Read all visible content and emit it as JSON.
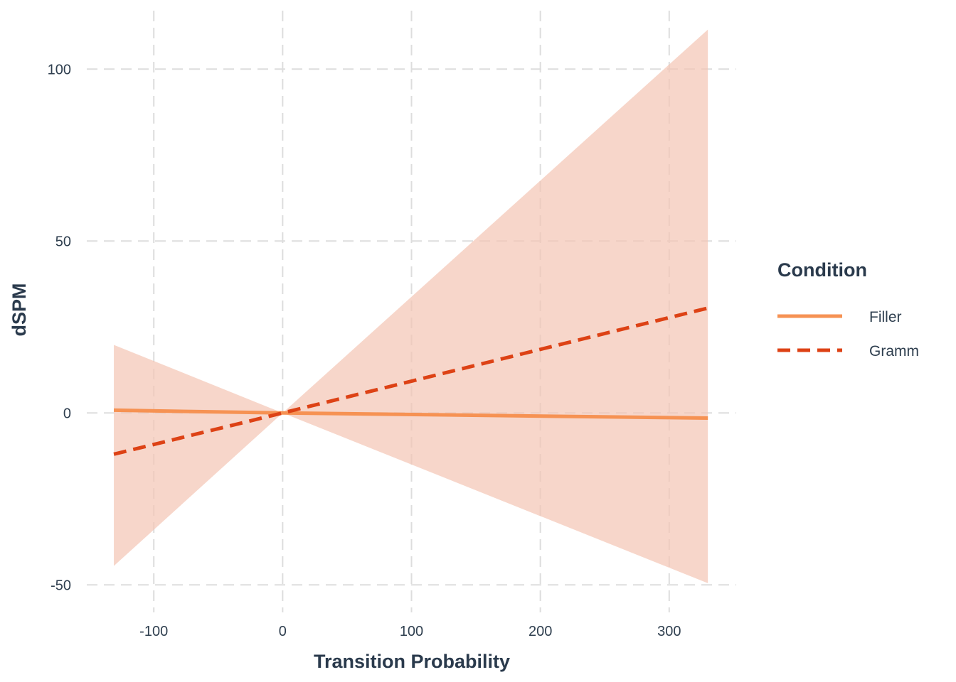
{
  "chart_data": {
    "type": "line",
    "title": "",
    "xlabel": "Transition Probability",
    "ylabel": "dSPM",
    "xlim": [
      -152,
      352
    ],
    "ylim": [
      -58,
      117
    ],
    "x_ticks": [
      -100,
      0,
      100,
      200,
      300
    ],
    "y_ticks": [
      -50,
      0,
      50,
      100
    ],
    "grid": true,
    "legend": {
      "title": "Condition",
      "placement": "right"
    },
    "series": [
      {
        "name": "Filler",
        "color": "#f69253",
        "dash": "solid",
        "x": [
          -131,
          0,
          330
        ],
        "y": [
          0.8,
          0.0,
          -1.5
        ]
      },
      {
        "name": "Gramm",
        "color": "#dd4215",
        "dash": "dashed",
        "x": [
          -131,
          0,
          330
        ],
        "y": [
          -12,
          0.0,
          30.5
        ]
      }
    ],
    "band": {
      "color": "#f4c4b4",
      "x": [
        -131,
        0,
        330
      ],
      "upper": [
        19.8,
        0.0,
        111.5
      ],
      "lower": [
        -44.5,
        0.0,
        -49.5
      ]
    }
  }
}
